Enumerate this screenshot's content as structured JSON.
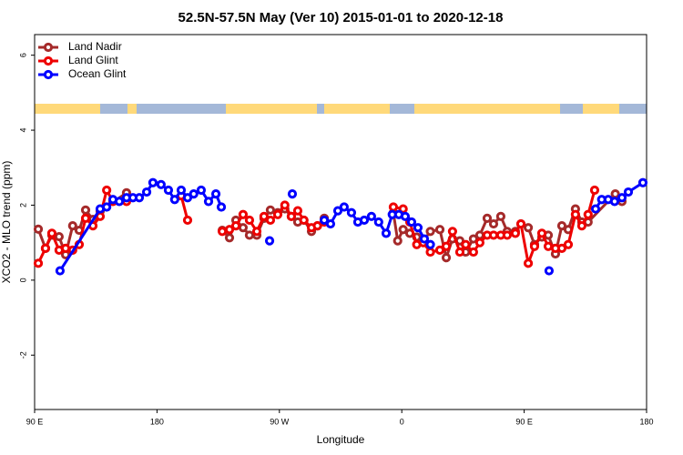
{
  "chart_data": {
    "type": "line",
    "title": "52.5N-57.5N May (Ver 10)   2015-01-01 to 2020-12-18",
    "x_label": "Longitude",
    "y_label": "XCO2 - MLO trend (ppm)",
    "xlim": [
      90,
      540
    ],
    "xticks": [
      {
        "value": 90,
        "label": "90 E"
      },
      {
        "value": 180,
        "label": "180"
      },
      {
        "value": 270,
        "label": "90 W"
      },
      {
        "value": 360,
        "label": "0"
      },
      {
        "value": 450,
        "label": "90 E"
      },
      {
        "value": 540,
        "label": "180"
      }
    ],
    "ylim": [
      -3.45,
      6.55
    ],
    "yticks": [
      -2,
      0,
      2,
      4,
      6
    ],
    "legend": "top-left",
    "series": [
      {
        "name": "Land Nadir",
        "color": "#a52a2a",
        "x": [
          92.7,
          98,
          102.7,
          108,
          112.8,
          118,
          122.8,
          127.5,
          132.9,
          138.2,
          157.6,
          null,
          228,
          233.3,
          238,
          243.3,
          248,
          253.4,
          258.7,
          263.4,
          268.8,
          274,
          278.8,
          283.5,
          288,
          293.6,
          298,
          303,
          null,
          353.8,
          357,
          361,
          365.9,
          371,
          375.8,
          381,
          388,
          392.7,
          397.3,
          402.7,
          407,
          412.7,
          417.4,
          422.8,
          427.5,
          432.8,
          437.5,
          443.5,
          447.6,
          453,
          457.6,
          463,
          467.7,
          473,
          477.7,
          482.4,
          487.7,
          492.4,
          497,
          517,
          521.9
        ],
        "values": [
          1.36,
          0.85,
          1.2,
          1.16,
          0.68,
          1.45,
          1.33,
          1.87,
          1.62,
          1.84,
          2.33,
          null,
          1.33,
          1.13,
          1.6,
          1.4,
          1.2,
          1.2,
          1.65,
          1.87,
          1.8,
          1.9,
          1.7,
          1.55,
          1.6,
          1.3,
          1.45,
          1.65,
          null,
          1.8,
          1.05,
          1.35,
          1.25,
          1.15,
          1.05,
          1.3,
          1.35,
          0.6,
          1.1,
          1.05,
          0.75,
          1.1,
          1.2,
          1.65,
          1.5,
          1.7,
          1.3,
          1.3,
          1.5,
          1.4,
          0.95,
          1.15,
          1.2,
          0.7,
          1.45,
          1.35,
          1.9,
          1.55,
          1.55,
          2.3,
          2.1
        ]
      },
      {
        "name": "Land Glint",
        "color": "#ee0000",
        "x": [
          92.7,
          98,
          102.7,
          108,
          112.8,
          118,
          122.8,
          127.5,
          132.9,
          138.2,
          143,
          147.6,
          157.6,
          null,
          197.8,
          202.5,
          null,
          228,
          233.3,
          238,
          243.3,
          248,
          253.4,
          258.7,
          263.4,
          268.8,
          274,
          278.8,
          283.5,
          288,
          293.6,
          298,
          303,
          null,
          353.8,
          361,
          365.9,
          371,
          375.8,
          381,
          388,
          392.7,
          397.3,
          402.7,
          407,
          412.7,
          417.4,
          422.8,
          427.5,
          432.8,
          437.5,
          443.5,
          447.6,
          453,
          457.6,
          463,
          467.7,
          473,
          477.7,
          482.4,
          487.7,
          492.4,
          497,
          501.8
        ],
        "values": [
          0.45,
          0.85,
          1.25,
          0.8,
          0.85,
          0.8,
          0.95,
          1.65,
          1.45,
          1.7,
          2.4,
          2.1,
          2.1,
          null,
          2.25,
          1.6,
          null,
          1.3,
          1.35,
          1.45,
          1.75,
          1.6,
          1.3,
          1.7,
          1.6,
          1.75,
          2.0,
          1.7,
          1.85,
          1.6,
          1.4,
          1.45,
          1.55,
          null,
          1.95,
          1.9,
          1.55,
          0.95,
          1.0,
          0.75,
          0.8,
          0.9,
          1.3,
          0.75,
          0.95,
          0.75,
          1.0,
          1.2,
          1.2,
          1.2,
          1.2,
          1.25,
          1.5,
          0.45,
          0.9,
          1.25,
          0.9,
          0.85,
          0.85,
          0.95,
          1.75,
          1.45,
          1.75,
          2.4
        ]
      },
      {
        "name": "Ocean Glint",
        "color": "#0000ff",
        "x": [
          108.7,
          138.2,
          143,
          147.6,
          152.3,
          157.6,
          162.3,
          167,
          172.4,
          177,
          183,
          188.4,
          193,
          197.8,
          202.5,
          207,
          212.5,
          217.9,
          223.3,
          227.3,
          null,
          262.8,
          null,
          279.5,
          null,
          303,
          307.6,
          313,
          317.6,
          323,
          327.7,
          332.4,
          337.7,
          343,
          348.5,
          353,
          357.8,
          362.5,
          367.2,
          371.9,
          376.6,
          381,
          null,
          468.3,
          null,
          502.5,
          507,
          511.8,
          516.5,
          521.9,
          526.6,
          537.3
        ],
        "values": [
          0.25,
          1.9,
          1.95,
          2.15,
          2.1,
          2.2,
          2.2,
          2.2,
          2.35,
          2.6,
          2.55,
          2.4,
          2.15,
          2.4,
          2.2,
          2.3,
          2.4,
          2.1,
          2.3,
          1.95,
          null,
          1.05,
          null,
          2.3,
          null,
          1.6,
          1.5,
          1.85,
          1.95,
          1.8,
          1.55,
          1.6,
          1.7,
          1.55,
          1.25,
          1.75,
          1.75,
          1.7,
          1.55,
          1.4,
          1.1,
          0.95,
          null,
          0.25,
          null,
          1.9,
          2.15,
          2.15,
          2.1,
          2.2,
          2.35,
          2.6
        ]
      }
    ]
  }
}
